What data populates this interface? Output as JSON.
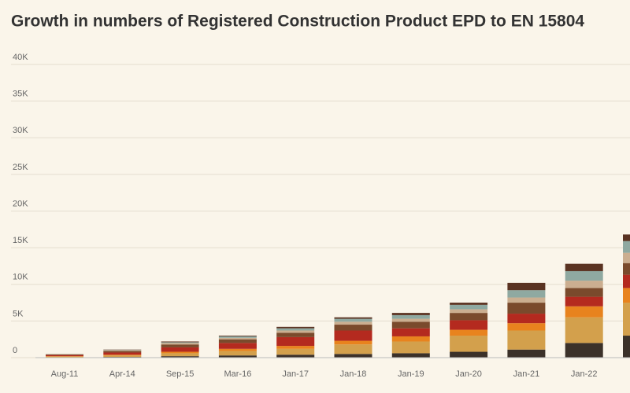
{
  "chart_data": {
    "type": "stacked_bar",
    "title": "Growth in numbers of Registered Construction Product EPD to EN 15804",
    "categories": [
      "Aug-11",
      "Apr-14",
      "Sep-15",
      "Mar-16",
      "Jan-17",
      "Jan-18",
      "Jan-19",
      "Jan-20",
      "Jan-21",
      "Jan-22",
      null
    ],
    "series": [
      {
        "color": "#3b3129",
        "values": [
          50,
          100,
          200,
          300,
          400,
          500,
          600,
          800,
          1100,
          2000,
          3000
        ]
      },
      {
        "color": "#d3a04c",
        "values": [
          100,
          200,
          400,
          600,
          800,
          1300,
          1600,
          2200,
          2600,
          3500,
          4500
        ]
      },
      {
        "color": "#e8831e",
        "values": [
          50,
          100,
          200,
          300,
          400,
          500,
          700,
          800,
          1000,
          1500,
          2000
        ]
      },
      {
        "color": "#b42a1f",
        "values": [
          150,
          300,
          600,
          800,
          1200,
          1400,
          1100,
          1300,
          1300,
          1300,
          1800
        ]
      },
      {
        "color": "#7a4a2c",
        "values": [
          100,
          200,
          400,
          500,
          600,
          800,
          900,
          1000,
          1500,
          1200,
          1600
        ]
      },
      {
        "color": "#cbae90",
        "values": [
          30,
          100,
          200,
          200,
          300,
          400,
          400,
          500,
          700,
          1000,
          1400
        ]
      },
      {
        "color": "#8fa9a1",
        "values": [
          20,
          50,
          100,
          200,
          300,
          400,
          500,
          600,
          1000,
          1300,
          1600
        ]
      },
      {
        "color": "#5a3322",
        "values": [
          0,
          50,
          100,
          100,
          200,
          200,
          300,
          300,
          1000,
          1000,
          900
        ]
      }
    ],
    "ylim": [
      0,
      40000
    ],
    "yticks": [
      0,
      {
        "value": 5000,
        "label": "5K"
      },
      {
        "value": 10000,
        "label": "10K"
      },
      {
        "value": 15000,
        "label": "15K"
      },
      {
        "value": 20000,
        "label": "20K"
      },
      {
        "value": 25000,
        "label": "25K"
      },
      {
        "value": 30000,
        "label": "30K"
      },
      {
        "value": 35000,
        "label": "35K"
      },
      {
        "value": 40000,
        "label": "40K"
      }
    ],
    "grid": true
  }
}
